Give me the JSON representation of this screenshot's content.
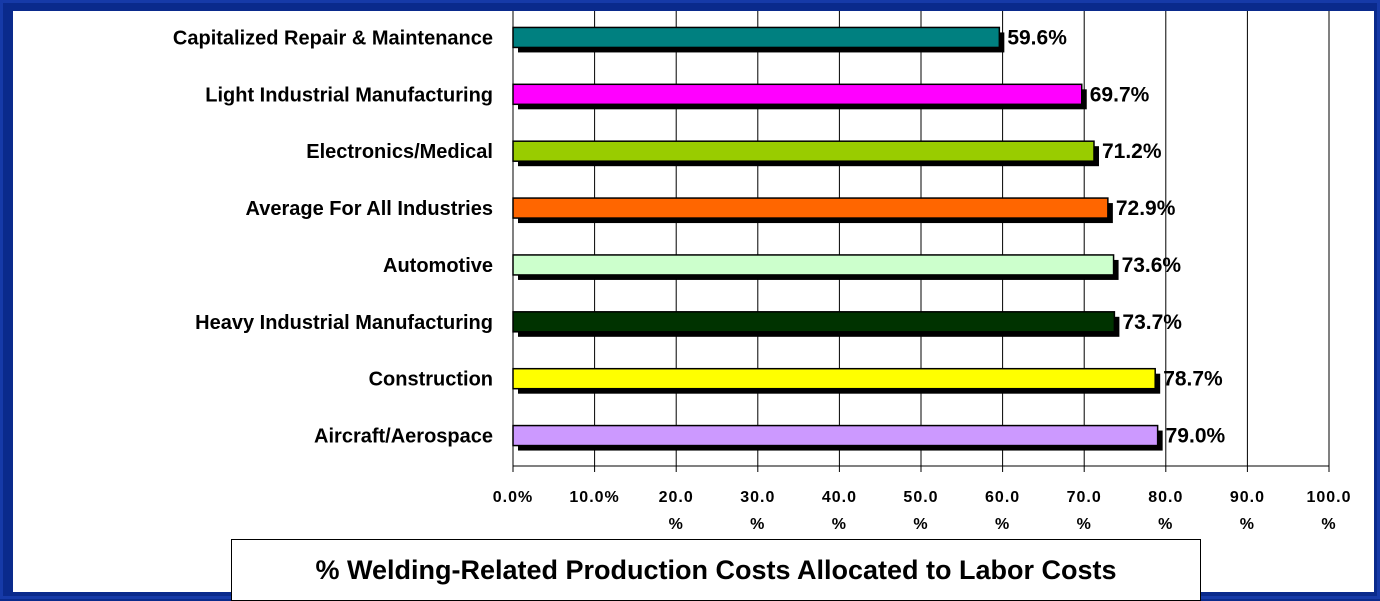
{
  "chart_data": {
    "type": "bar",
    "orientation": "horizontal",
    "categories": [
      "Capitalized Repair & Maintenance",
      "Light Industrial Manufacturing",
      "Electronics/Medical",
      "Average For All Industries",
      "Automotive",
      "Heavy Industrial Manufacturing",
      "Construction",
      "Aircraft/Aerospace"
    ],
    "values": [
      59.6,
      69.7,
      71.2,
      72.9,
      73.6,
      73.7,
      78.7,
      79.0
    ],
    "value_labels": [
      "59.6%",
      "69.7%",
      "71.2%",
      "72.9%",
      "73.6%",
      "73.7%",
      "78.7%",
      "79.0%"
    ],
    "bar_colors": [
      "#008080",
      "#ff00ff",
      "#99cc00",
      "#ff6600",
      "#ccffcc",
      "#003300",
      "#ffff00",
      "#cc99ff"
    ],
    "xlim": [
      0,
      100
    ],
    "xticks": [
      0,
      10,
      20,
      30,
      40,
      50,
      60,
      70,
      80,
      90,
      100
    ],
    "xtick_labels": [
      [
        "0.0%"
      ],
      [
        "10.0%"
      ],
      [
        "20.0",
        "%"
      ],
      [
        "30.0",
        "%"
      ],
      [
        "40.0",
        "%"
      ],
      [
        "50.0",
        "%"
      ],
      [
        "60.0",
        "%"
      ],
      [
        "70.0",
        "%"
      ],
      [
        "80.0",
        "%"
      ],
      [
        "90.0",
        "%"
      ],
      [
        "100.0",
        "%"
      ]
    ],
    "xlabel": "% Welding-Related Production Costs Allocated to Labor Costs",
    "grid": "vertical",
    "legend": "none"
  },
  "colors": {
    "background": "#0a2a8c",
    "panel": "#ffffff",
    "shadow": "#000000"
  }
}
